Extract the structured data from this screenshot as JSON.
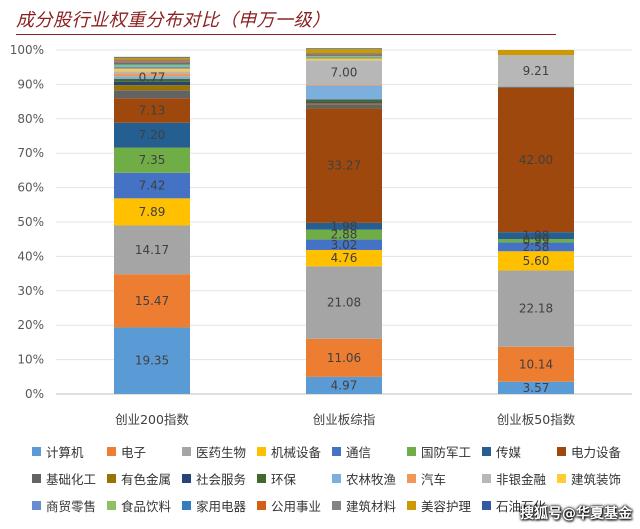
{
  "chart_data": {
    "type": "bar",
    "stacked": true,
    "title": "成分股行业权重分布对比（申万一级）",
    "xlabel": "",
    "ylabel": "",
    "ylim": [
      0,
      100
    ],
    "yticks": [
      "0%",
      "10%",
      "20%",
      "30%",
      "40%",
      "50%",
      "60%",
      "70%",
      "80%",
      "90%",
      "100%"
    ],
    "categories": [
      "创业200指数",
      "创业板综指",
      "创业板50指数"
    ],
    "series": [
      {
        "name": "计算机",
        "color": "#5b9bd5",
        "values": [
          19.35,
          4.97,
          3.57
        ],
        "labels": [
          "19.35",
          "4.97",
          "3.57"
        ]
      },
      {
        "name": "电子",
        "color": "#ed7d31",
        "values": [
          15.47,
          11.06,
          10.14
        ],
        "labels": [
          "15.47",
          "11.06",
          "10.14"
        ]
      },
      {
        "name": "医药生物",
        "color": "#a5a5a5",
        "values": [
          14.17,
          21.08,
          22.18
        ],
        "labels": [
          "14.17",
          "21.08",
          "22.18"
        ]
      },
      {
        "name": "机械设备",
        "color": "#ffc000",
        "values": [
          7.89,
          4.76,
          5.6
        ],
        "labels": [
          "7.89",
          "4.76",
          "5.60"
        ]
      },
      {
        "name": "通信",
        "color": "#4472c4",
        "values": [
          7.42,
          3.02,
          2.58
        ],
        "labels": [
          "7.42",
          "3.02",
          "2.58"
        ]
      },
      {
        "name": "国防军工",
        "color": "#70ad47",
        "values": [
          7.35,
          2.88,
          0.99
        ],
        "labels": [
          "7.35",
          "2.88",
          "0.99"
        ]
      },
      {
        "name": "传媒",
        "color": "#255e91",
        "values": [
          7.2,
          1.98,
          1.98
        ],
        "labels": [
          "7.20",
          "1.98",
          "1.98"
        ]
      },
      {
        "name": "电力设备",
        "color": "#9e480e",
        "values": [
          7.13,
          33.27,
          42.0
        ],
        "labels": [
          "7.13",
          "33.27",
          "42.00"
        ]
      },
      {
        "name": "基础化工",
        "color": "#636363",
        "values": [
          2.3,
          1.2,
          0.3
        ],
        "labels": [
          "",
          "",
          ""
        ]
      },
      {
        "name": "有色金属",
        "color": "#997300",
        "values": [
          1.5,
          0.4,
          0.0
        ],
        "labels": [
          "",
          "",
          ""
        ]
      },
      {
        "name": "社会服务",
        "color": "#264478",
        "values": [
          1.0,
          0.5,
          0.0
        ],
        "labels": [
          "",
          "",
          ""
        ]
      },
      {
        "name": "环保",
        "color": "#43682b",
        "values": [
          0.8,
          0.5,
          0.0
        ],
        "labels": [
          "",
          "",
          ""
        ]
      },
      {
        "name": "农林牧渔",
        "color": "#7cafdd",
        "values": [
          0.77,
          4.1,
          0.0
        ],
        "labels": [
          "0.77",
          "",
          ""
        ]
      },
      {
        "name": "汽车",
        "color": "#f1975a",
        "values": [
          0.8,
          0.3,
          0.0
        ],
        "labels": [
          "",
          "",
          ""
        ]
      },
      {
        "name": "非银金融",
        "color": "#b7b7b7",
        "values": [
          0.7,
          7.0,
          9.21
        ],
        "labels": [
          "",
          "7.00",
          "9.21"
        ]
      },
      {
        "name": "建筑装饰",
        "color": "#ffcd33",
        "values": [
          0.7,
          0.5,
          0.0
        ],
        "labels": [
          "",
          "",
          ""
        ]
      },
      {
        "name": "商贸零售",
        "color": "#698ed0",
        "values": [
          0.6,
          0.3,
          0.0
        ],
        "labels": [
          "",
          "",
          ""
        ]
      },
      {
        "name": "食品饮料",
        "color": "#8cc168",
        "values": [
          0.6,
          0.4,
          0.0
        ],
        "labels": [
          "",
          "",
          ""
        ]
      },
      {
        "name": "家用电器",
        "color": "#327dc2",
        "values": [
          0.5,
          0.3,
          0.0
        ],
        "labels": [
          "",
          "",
          ""
        ]
      },
      {
        "name": "公用事业",
        "color": "#d26012",
        "values": [
          0.5,
          0.3,
          0.0
        ],
        "labels": [
          "",
          "",
          ""
        ]
      },
      {
        "name": "建筑材料",
        "color": "#848484",
        "values": [
          0.5,
          0.3,
          0.0
        ],
        "labels": [
          "",
          "",
          ""
        ]
      },
      {
        "name": "美容护理",
        "color": "#cc9a00",
        "values": [
          0.55,
          1.2,
          1.45
        ],
        "labels": [
          "",
          "",
          ""
        ]
      },
      {
        "name": "石油石化",
        "color": "#335aa1",
        "values": [
          0.2,
          0.2,
          0.0
        ],
        "labels": [
          "",
          "",
          ""
        ]
      }
    ]
  },
  "watermark": "搜狐号@华夏基金"
}
